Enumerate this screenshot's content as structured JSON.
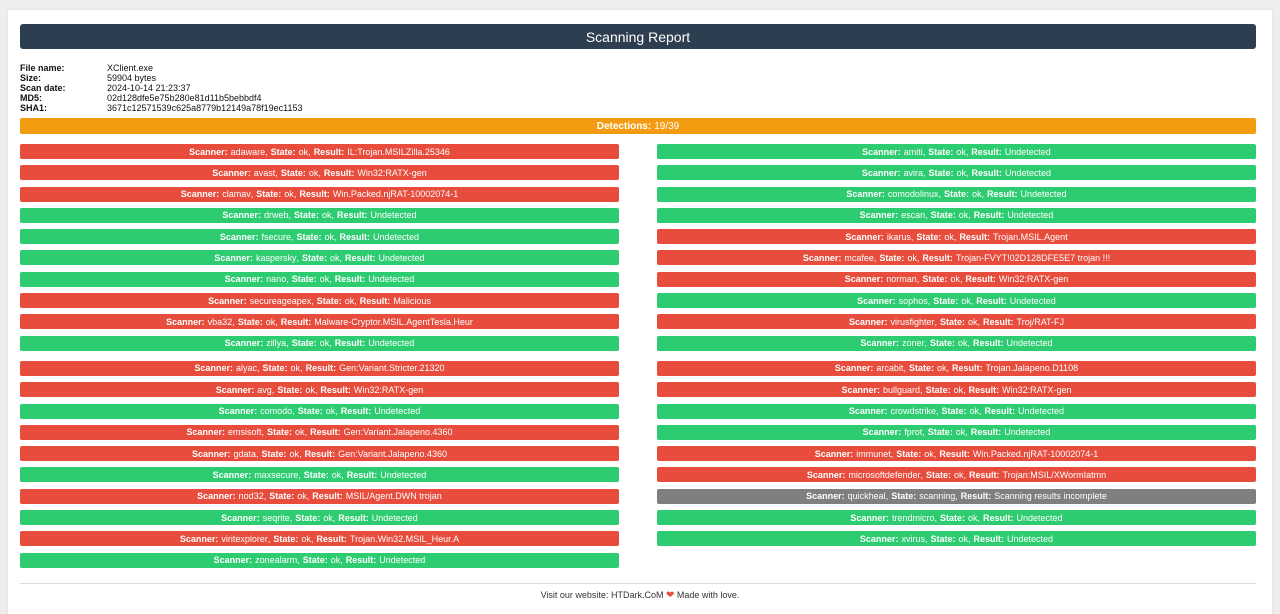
{
  "header": {
    "title": "Scanning Report"
  },
  "file_info": [
    {
      "label": "File name:",
      "value": "XClient.exe"
    },
    {
      "label": "Size:",
      "value": "59904 bytes"
    },
    {
      "label": "Scan date:",
      "value": "2024-10-14 21:23:37"
    },
    {
      "label": "MD5:",
      "value": "02d128dfe5e75b280e81d11b5bebbdf4"
    },
    {
      "label": "SHA1:",
      "value": "3671c12571539c625a8779b12149a78f19ec1153"
    }
  ],
  "detections": {
    "label": "Detections:",
    "value": "19/39"
  },
  "left_scanners": [
    {
      "scanner": "adaware",
      "state": "ok",
      "result": "IL:Trojan.MSILZilla.25346",
      "status": "red"
    },
    {
      "scanner": "avast",
      "state": "ok",
      "result": "Win32:RATX-gen",
      "status": "red"
    },
    {
      "scanner": "clamav",
      "state": "ok",
      "result": "Win.Packed.njRAT-10002074-1",
      "status": "red"
    },
    {
      "scanner": "drweb",
      "state": "ok",
      "result": "Undetected",
      "status": "green"
    },
    {
      "scanner": "fsecure",
      "state": "ok",
      "result": "Undetected",
      "status": "green"
    },
    {
      "scanner": "kaspersky",
      "state": "ok",
      "result": "Undetected",
      "status": "green"
    },
    {
      "scanner": "nano",
      "state": "ok",
      "result": "Undetected",
      "status": "green"
    },
    {
      "scanner": "secureageapex",
      "state": "ok",
      "result": "Malicious",
      "status": "red"
    },
    {
      "scanner": "vba32",
      "state": "ok",
      "result": "Malware-Cryptor.MSIL.AgentTesla.Heur",
      "status": "red"
    },
    {
      "scanner": "zillya",
      "state": "ok",
      "result": "Undetected",
      "status": "green"
    },
    {
      "scanner": "alyac",
      "state": "ok",
      "result": "Gen:Variant.Stricter.21320",
      "status": "red"
    },
    {
      "scanner": "avg",
      "state": "ok",
      "result": "Win32:RATX-gen",
      "status": "red"
    },
    {
      "scanner": "comodo",
      "state": "ok",
      "result": "Undetected",
      "status": "green"
    },
    {
      "scanner": "emsisoft",
      "state": "ok",
      "result": "Gen:Variant.Jalapeno.4360",
      "status": "red"
    },
    {
      "scanner": "gdata",
      "state": "ok",
      "result": "Gen:Variant.Jalapeno.4360",
      "status": "red"
    },
    {
      "scanner": "maxsecure",
      "state": "ok",
      "result": "Undetected",
      "status": "green"
    },
    {
      "scanner": "nod32",
      "state": "ok",
      "result": "MSIL/Agent.DWN trojan",
      "status": "red"
    },
    {
      "scanner": "seqrite",
      "state": "ok",
      "result": "Undetected",
      "status": "green"
    },
    {
      "scanner": "viritexplorer",
      "state": "ok",
      "result": "Trojan.Win32.MSIL_Heur.A",
      "status": "red"
    },
    {
      "scanner": "zonealarm",
      "state": "ok",
      "result": "Undetected",
      "status": "green"
    }
  ],
  "right_scanners": [
    {
      "scanner": "amiti",
      "state": "ok",
      "result": "Undetected",
      "status": "green"
    },
    {
      "scanner": "avira",
      "state": "ok",
      "result": "Undetected",
      "status": "green"
    },
    {
      "scanner": "comodolinux",
      "state": "ok",
      "result": "Undetected",
      "status": "green"
    },
    {
      "scanner": "escan",
      "state": "ok",
      "result": "Undetected",
      "status": "green"
    },
    {
      "scanner": "ikarus",
      "state": "ok",
      "result": "Trojan.MSIL.Agent",
      "status": "red"
    },
    {
      "scanner": "mcafee",
      "state": "ok",
      "result": "Trojan-FVYT!02D128DFE5E7 trojan !!!",
      "status": "red"
    },
    {
      "scanner": "norman",
      "state": "ok",
      "result": "Win32:RATX-gen",
      "status": "red"
    },
    {
      "scanner": "sophos",
      "state": "ok",
      "result": "Undetected",
      "status": "green"
    },
    {
      "scanner": "virusfighter",
      "state": "ok",
      "result": "Troj/RAT-FJ",
      "status": "red"
    },
    {
      "scanner": "zoner",
      "state": "ok",
      "result": "Undetected",
      "status": "green"
    },
    {
      "scanner": "arcabit",
      "state": "ok",
      "result": "Trojan.Jalapeno.D1108",
      "status": "red"
    },
    {
      "scanner": "bullguard",
      "state": "ok",
      "result": "Win32:RATX-gen",
      "status": "red"
    },
    {
      "scanner": "crowdstrike",
      "state": "ok",
      "result": "Undetected",
      "status": "green"
    },
    {
      "scanner": "fprot",
      "state": "ok",
      "result": "Undetected",
      "status": "green"
    },
    {
      "scanner": "immunet",
      "state": "ok",
      "result": "Win.Packed.njRAT-10002074-1",
      "status": "red"
    },
    {
      "scanner": "microsoftdefender",
      "state": "ok",
      "result": "Trojan:MSIL/XWormIatmn",
      "status": "red"
    },
    {
      "scanner": "quickheal",
      "state": "scanning",
      "result": "Scanning results incomplete",
      "status": "grey"
    },
    {
      "scanner": "trendmicro",
      "state": "ok",
      "result": "Undetected",
      "status": "green"
    },
    {
      "scanner": "xvirus",
      "state": "ok",
      "result": "Undetected",
      "status": "green"
    }
  ],
  "labels": {
    "scanner": "Scanner:",
    "state": "State:",
    "result": "Result:"
  },
  "footer": {
    "prefix": "Visit our website:",
    "link": "HTDark.CoM",
    "heart": "❤",
    "suffix": "Made with love."
  },
  "colors": {
    "red": "#e74c3c",
    "green": "#2ecc71",
    "grey": "#7f7f7f",
    "orange": "#f39c12",
    "header": "#2c3e50"
  }
}
